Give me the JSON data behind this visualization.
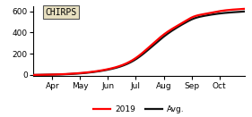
{
  "title": "CHIRPS",
  "ylim": [
    -10,
    650
  ],
  "yticks": [
    0,
    200,
    400,
    600
  ],
  "x_months": [
    "Apr",
    "May",
    "Jun",
    "Jul",
    "Aug",
    "Sep",
    "Oct"
  ],
  "line_2019": {
    "label": "2019",
    "color": "#ff0000",
    "linewidth": 1.6
  },
  "line_avg": {
    "label": "Avg.",
    "color": "#111111",
    "linewidth": 1.6
  },
  "xlim": [
    3.3,
    10.9
  ],
  "month_ticks": [
    4,
    5,
    6,
    7,
    8,
    9,
    10
  ],
  "chirps_box_color": "#e8e0c0",
  "background_color": "#ffffff",
  "figsize": [
    2.81,
    1.31
  ],
  "dpi": 100
}
